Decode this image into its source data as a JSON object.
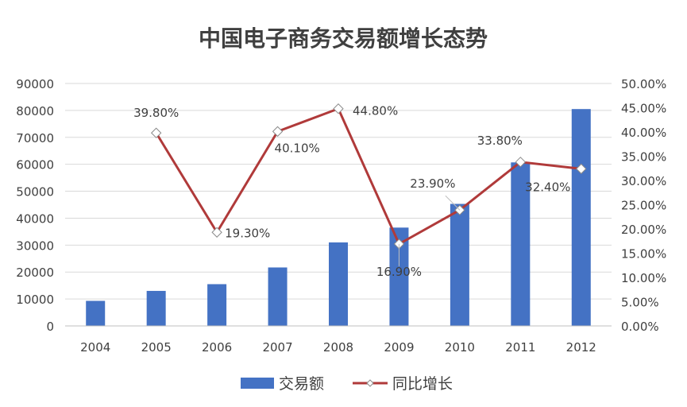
{
  "chart_data": {
    "type": "bar",
    "title": "中国电子商务交易额增长态势",
    "categories": [
      "2004",
      "2005",
      "2006",
      "2007",
      "2008",
      "2009",
      "2010",
      "2011",
      "2012"
    ],
    "series": [
      {
        "name": "交易额",
        "type": "bar",
        "axis": "left",
        "values": [
          9300,
          13000,
          15500,
          21700,
          31000,
          36500,
          45300,
          60700,
          80500
        ]
      },
      {
        "name": "同比增长",
        "type": "line",
        "axis": "right",
        "values": [
          null,
          39.8,
          19.3,
          40.1,
          44.8,
          16.9,
          23.9,
          33.8,
          32.4
        ],
        "labels": [
          "",
          "39.80%",
          "19.30%",
          "40.10%",
          "44.80%",
          "16.90%",
          "23.90%",
          "33.80%",
          "32.40%"
        ]
      }
    ],
    "y_left": {
      "ylim": [
        0,
        90000
      ],
      "ticks": [
        "0",
        "10000",
        "20000",
        "30000",
        "40000",
        "50000",
        "60000",
        "70000",
        "80000",
        "90000"
      ]
    },
    "y_right": {
      "ylim": [
        0,
        50
      ],
      "ticks": [
        "0.00%",
        "5.00%",
        "10.00%",
        "15.00%",
        "20.00%",
        "25.00%",
        "30.00%",
        "35.00%",
        "40.00%",
        "45.00%",
        "50.00%"
      ]
    },
    "grid": true,
    "legend": "bottom",
    "colors": {
      "bar": "#4472C4",
      "line": "#B03A3A",
      "grid": "#D9D9D9",
      "text": "#404040"
    }
  }
}
